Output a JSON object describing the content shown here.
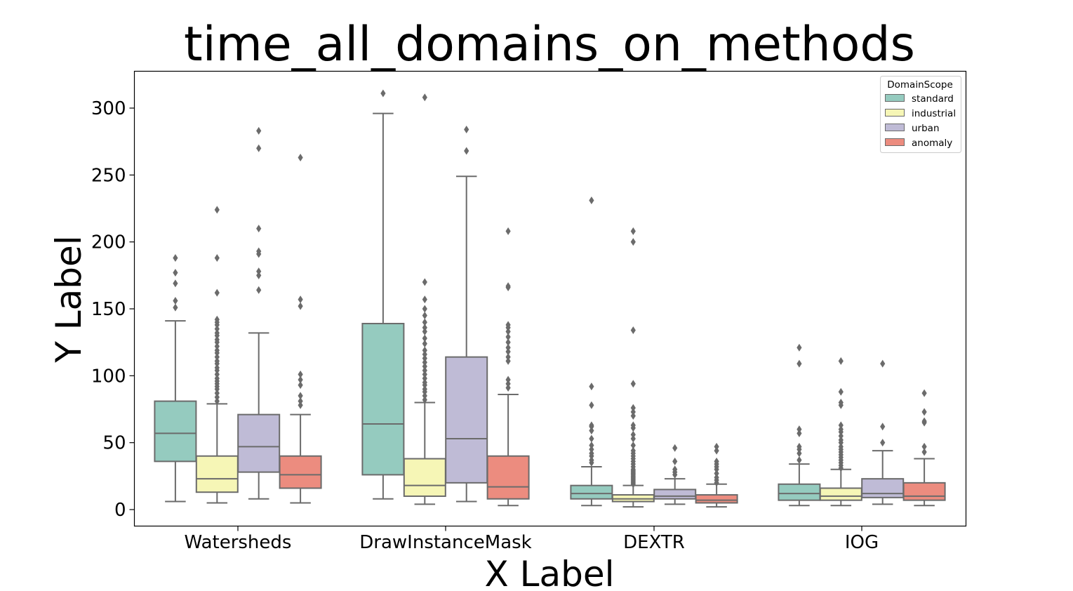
{
  "chart_data": {
    "type": "box",
    "title": "time_all_domains_on_methods",
    "xlabel": "X Label",
    "ylabel": "Y Label",
    "categories": [
      "Watersheds",
      "DrawInstanceMask",
      "DEXTR",
      "IOG"
    ],
    "yticks": [
      0,
      50,
      100,
      150,
      200,
      250,
      300
    ],
    "ylim": [
      -12,
      328
    ],
    "grid": false,
    "legend": {
      "title": "DomainScope",
      "placement": "top-right",
      "entries": [
        "standard",
        "industrial",
        "urban",
        "anomaly"
      ]
    },
    "colors": {
      "standard": "#95cbbf",
      "industrial": "#f6f6b6",
      "urban": "#bfbbd6",
      "anomaly": "#ec8c7f",
      "line": "#6b6b6b"
    },
    "series": [
      {
        "name": "standard",
        "boxes": [
          {
            "category": "Watersheds",
            "whislo": 6,
            "q1": 36,
            "med": 57,
            "q3": 81,
            "whishi": 141,
            "fliers": [
              151,
              156,
              169,
              177,
              188
            ]
          },
          {
            "category": "DrawInstanceMask",
            "whislo": 8,
            "q1": 26,
            "med": 64,
            "q3": 139,
            "whishi": 296,
            "fliers": [
              311
            ]
          },
          {
            "category": "DEXTR",
            "whislo": 3,
            "q1": 8,
            "med": 12,
            "q3": 18,
            "whishi": 32,
            "fliers": [
              35,
              37,
              40,
              42,
              45,
              48,
              53,
              59,
              62,
              63,
              78,
              92,
              231
            ]
          },
          {
            "category": "IOG",
            "whislo": 3,
            "q1": 7,
            "med": 12,
            "q3": 19,
            "whishi": 34,
            "fliers": [
              37,
              42,
              45,
              47,
              57,
              60,
              109,
              121
            ]
          }
        ]
      },
      {
        "name": "industrial",
        "boxes": [
          {
            "category": "Watersheds",
            "whislo": 5,
            "q1": 13,
            "med": 23,
            "q3": 40,
            "whishi": 79,
            "fliers": [
              81,
              84,
              87,
              90,
              92,
              94,
              96,
              98,
              101,
              104,
              106,
              109,
              111,
              114,
              117,
              119,
              122,
              125,
              127,
              130,
              132,
              135,
              138,
              140,
              142,
              162,
              188,
              224
            ]
          },
          {
            "category": "DrawInstanceMask",
            "whislo": 4,
            "q1": 10,
            "med": 18,
            "q3": 38,
            "whishi": 80,
            "fliers": [
              82,
              85,
              88,
              90,
              93,
              95,
              98,
              101,
              104,
              107,
              110,
              113,
              116,
              119,
              124,
              128,
              133,
              136,
              140,
              145,
              150,
              157,
              170,
              308
            ]
          },
          {
            "category": "DEXTR",
            "whislo": 2,
            "q1": 6,
            "med": 8,
            "q3": 11,
            "whishi": 18,
            "fliers": [
              19,
              20,
              21,
              22,
              23,
              24,
              25,
              26,
              27,
              28,
              29,
              30,
              32,
              34,
              36,
              38,
              40,
              42,
              44,
              48,
              53,
              56,
              61,
              63,
              70,
              73,
              76,
              94,
              134,
              200,
              208
            ]
          },
          {
            "category": "IOG",
            "whislo": 3,
            "q1": 7,
            "med": 10,
            "q3": 16,
            "whishi": 30,
            "fliers": [
              31,
              33,
              35,
              37,
              39,
              41,
              43,
              45,
              47,
              50,
              52,
              55,
              58,
              60,
              63,
              78,
              80,
              88,
              111
            ]
          }
        ]
      },
      {
        "name": "urban",
        "boxes": [
          {
            "category": "Watersheds",
            "whislo": 8,
            "q1": 28,
            "med": 47,
            "q3": 71,
            "whishi": 132,
            "fliers": [
              164,
              175,
              178,
              191,
              193,
              210,
              270,
              283
            ]
          },
          {
            "category": "DrawInstanceMask",
            "whislo": 6,
            "q1": 20,
            "med": 53,
            "q3": 114,
            "whishi": 249,
            "fliers": [
              268,
              284
            ]
          },
          {
            "category": "DEXTR",
            "whislo": 4,
            "q1": 8,
            "med": 10,
            "q3": 15,
            "whishi": 23,
            "fliers": [
              26,
              28,
              30,
              36,
              46
            ]
          },
          {
            "category": "IOG",
            "whislo": 4,
            "q1": 9,
            "med": 12,
            "q3": 23,
            "whishi": 44,
            "fliers": [
              50,
              62,
              109
            ]
          }
        ]
      },
      {
        "name": "anomaly",
        "boxes": [
          {
            "category": "Watersheds",
            "whislo": 5,
            "q1": 16,
            "med": 26,
            "q3": 40,
            "whishi": 71,
            "fliers": [
              78,
              81,
              85,
              93,
              97,
              101,
              152,
              157,
              263
            ]
          },
          {
            "category": "DrawInstanceMask",
            "whislo": 3,
            "q1": 8,
            "med": 17,
            "q3": 40,
            "whishi": 86,
            "fliers": [
              91,
              94,
              97,
              111,
              114,
              118,
              121,
              125,
              129,
              133,
              136,
              138,
              166,
              167,
              208
            ]
          },
          {
            "category": "DEXTR",
            "whislo": 2,
            "q1": 5,
            "med": 7,
            "q3": 11,
            "whishi": 19,
            "fliers": [
              20,
              22,
              24,
              27,
              30,
              32,
              34,
              36,
              44,
              47
            ]
          },
          {
            "category": "IOG",
            "whislo": 3,
            "q1": 7,
            "med": 10,
            "q3": 20,
            "whishi": 38,
            "fliers": [
              43,
              47,
              65,
              66,
              73,
              87
            ]
          }
        ]
      }
    ]
  }
}
